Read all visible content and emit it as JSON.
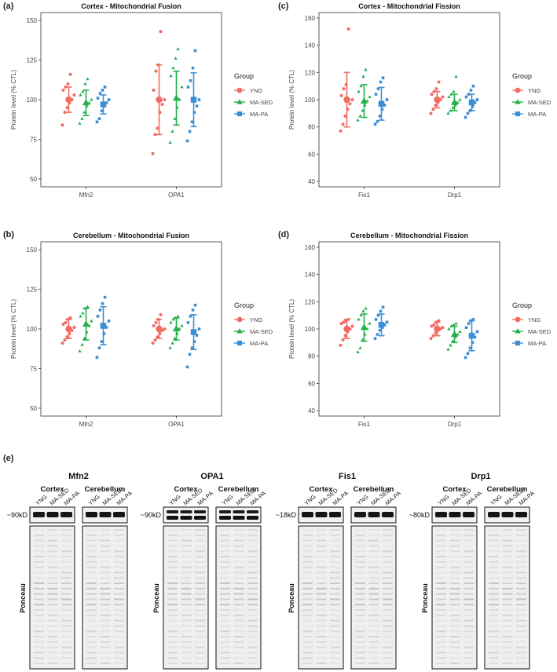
{
  "colors": {
    "YNG": "#F26B63",
    "MA-SED": "#22B04B",
    "MA-PA": "#3C8FD6",
    "axis": "#333333",
    "text": "#444444"
  },
  "legend": {
    "title": "Group",
    "items": [
      "YNG",
      "MA-SED",
      "MA-PA"
    ]
  },
  "chart_data": [
    {
      "id": "a",
      "type": "scatter",
      "panel_label": "(a)",
      "title": "Cortex - Mitochondrial Fusion",
      "xlabel": "",
      "ylabel": "Protein level (% CTL)",
      "categories": [
        "Mfn2",
        "OPA1"
      ],
      "ylim": [
        45,
        155
      ],
      "yticks": [
        50,
        75,
        100,
        125,
        150
      ],
      "series": [
        {
          "name": "YNG",
          "mean": [
            100,
            100
          ],
          "sd": [
            8,
            22
          ],
          "points": [
            [
              84,
              92,
              95,
              98,
              100,
              103,
              106,
              108,
              110,
              116
            ],
            [
              66,
              78,
              82,
              92,
              97,
              100,
              106,
              118,
              122,
              143
            ]
          ]
        },
        {
          "name": "MA-SED",
          "mean": [
            98,
            101
          ],
          "sd": [
            8,
            17
          ],
          "points": [
            [
              85,
              88,
              92,
              96,
              98,
              100,
              103,
              105,
              110,
              113
            ],
            [
              73,
              80,
              88,
              95,
              100,
              108,
              115,
              120,
              126,
              132
            ]
          ]
        },
        {
          "name": "MA-PA",
          "mean": [
            97,
            100
          ],
          "sd": [
            6,
            17
          ],
          "points": [
            [
              86,
              88,
              93,
              96,
              98,
              100,
              101,
              104,
              106,
              108
            ],
            [
              74,
              80,
              86,
              92,
              96,
              100,
              108,
              112,
              120,
              131
            ]
          ]
        }
      ]
    },
    {
      "id": "c",
      "type": "scatter",
      "panel_label": "(c)",
      "title": "Cortex - Mitochondrial Fission",
      "xlabel": "",
      "ylabel": "Protein level (% CTL)",
      "categories": [
        "Fis1",
        "Drp1"
      ],
      "ylim": [
        36,
        164
      ],
      "yticks": [
        40,
        60,
        80,
        100,
        120,
        140,
        160
      ],
      "series": [
        {
          "name": "YNG",
          "mean": [
            100,
            100
          ],
          "sd": [
            20,
            6
          ],
          "points": [
            [
              77,
              82,
              88,
              93,
              97,
              100,
              103,
              108,
              111,
              152
            ],
            [
              90,
              93,
              96,
              98,
              100,
              102,
              104,
              106,
              108,
              113
            ]
          ]
        },
        {
          "name": "MA-SED",
          "mean": [
            99,
            98
          ],
          "sd": [
            12,
            6
          ],
          "points": [
            [
              85,
              88,
              92,
              96,
              99,
              102,
              106,
              110,
              117,
              122
            ],
            [
              90,
              92,
              94,
              96,
              98,
              100,
              102,
              104,
              106,
              117
            ]
          ]
        },
        {
          "name": "MA-PA",
          "mean": [
            97,
            98
          ],
          "sd": [
            12,
            6
          ],
          "points": [
            [
              82,
              84,
              88,
              93,
              96,
              100,
              104,
              108,
              113,
              116
            ],
            [
              87,
              90,
              92,
              95,
              98,
              100,
              102,
              104,
              107,
              110
            ]
          ]
        }
      ]
    },
    {
      "id": "b",
      "type": "scatter",
      "panel_label": "(b)",
      "title": "Cerebellum - Mitochondrial Fusion",
      "xlabel": "",
      "ylabel": "Protein level (% CTL)",
      "categories": [
        "Mfn2",
        "OPA1"
      ],
      "ylim": [
        45,
        155
      ],
      "yticks": [
        50,
        75,
        100,
        125,
        150
      ],
      "series": [
        {
          "name": "YNG",
          "mean": [
            100,
            100
          ],
          "sd": [
            6,
            6
          ],
          "points": [
            [
              91,
              93,
              95,
              97,
              99,
              101,
              103,
              104,
              106,
              107
            ],
            [
              91,
              93,
              95,
              97,
              99,
              100,
              102,
              104,
              106,
              109
            ]
          ]
        },
        {
          "name": "MA-SED",
          "mean": [
            103,
            100
          ],
          "sd": [
            10,
            7
          ],
          "points": [
            [
              86,
              90,
              94,
              98,
              102,
              105,
              108,
              110,
              113,
              114
            ],
            [
              88,
              91,
              94,
              97,
              100,
              102,
              104,
              106,
              107,
              108
            ]
          ]
        },
        {
          "name": "MA-PA",
          "mean": [
            102,
            98
          ],
          "sd": [
            12,
            11
          ],
          "points": [
            [
              82,
              88,
              92,
              97,
              101,
              105,
              108,
              112,
              116,
              120
            ],
            [
              76,
              84,
              88,
              92,
              96,
              100,
              104,
              108,
              112,
              115
            ]
          ]
        }
      ]
    },
    {
      "id": "d",
      "type": "scatter",
      "panel_label": "(d)",
      "title": "Cerebellum - Mitochondrial Fission",
      "xlabel": "",
      "ylabel": "Protein level (% CTL)",
      "categories": [
        "Fis1",
        "Drp1"
      ],
      "ylim": [
        36,
        164
      ],
      "yticks": [
        40,
        60,
        80,
        100,
        120,
        140,
        160
      ],
      "series": [
        {
          "name": "YNG",
          "mean": [
            100,
            100
          ],
          "sd": [
            7,
            5
          ],
          "points": [
            [
              88,
              92,
              95,
              98,
              100,
              102,
              104,
              105,
              106,
              107
            ],
            [
              93,
              95,
              97,
              99,
              100,
              101,
              102,
              103,
              105,
              106
            ]
          ]
        },
        {
          "name": "MA-SED",
          "mean": [
            101,
            96
          ],
          "sd": [
            10,
            6
          ],
          "points": [
            [
              83,
              86,
              92,
              96,
              100,
              104,
              107,
              110,
              113,
              115
            ],
            [
              85,
              88,
              91,
              94,
              96,
              98,
              100,
              102,
              103,
              104
            ]
          ]
        },
        {
          "name": "MA-PA",
          "mean": [
            103,
            95
          ],
          "sd": [
            8,
            11
          ],
          "points": [
            [
              93,
              96,
              99,
              101,
              103,
              105,
              107,
              110,
              113,
              116
            ],
            [
              79,
              82,
              86,
              90,
              94,
              98,
              101,
              104,
              106,
              107
            ]
          ]
        }
      ]
    }
  ],
  "blots": {
    "panel_label": "(e)",
    "lanes": [
      "YNG",
      "MA-SED",
      "MA-PA"
    ],
    "ponceau_label": "Ponceau",
    "proteins": [
      {
        "name": "Mfn2",
        "size": "~90kD",
        "regions": [
          "Cortex",
          "Cerebellum"
        ],
        "bands": 1
      },
      {
        "name": "OPA1",
        "size": "~90kD",
        "regions": [
          "Cortex",
          "Cerebellum"
        ],
        "bands": 2
      },
      {
        "name": "Fis1",
        "size": "~18kD",
        "regions": [
          "Cortex",
          "Cerebellum"
        ],
        "bands": 1
      },
      {
        "name": "Drp1",
        "size": "~80kD",
        "regions": [
          "Cortex",
          "Cerebellum"
        ],
        "bands": 1
      }
    ]
  }
}
